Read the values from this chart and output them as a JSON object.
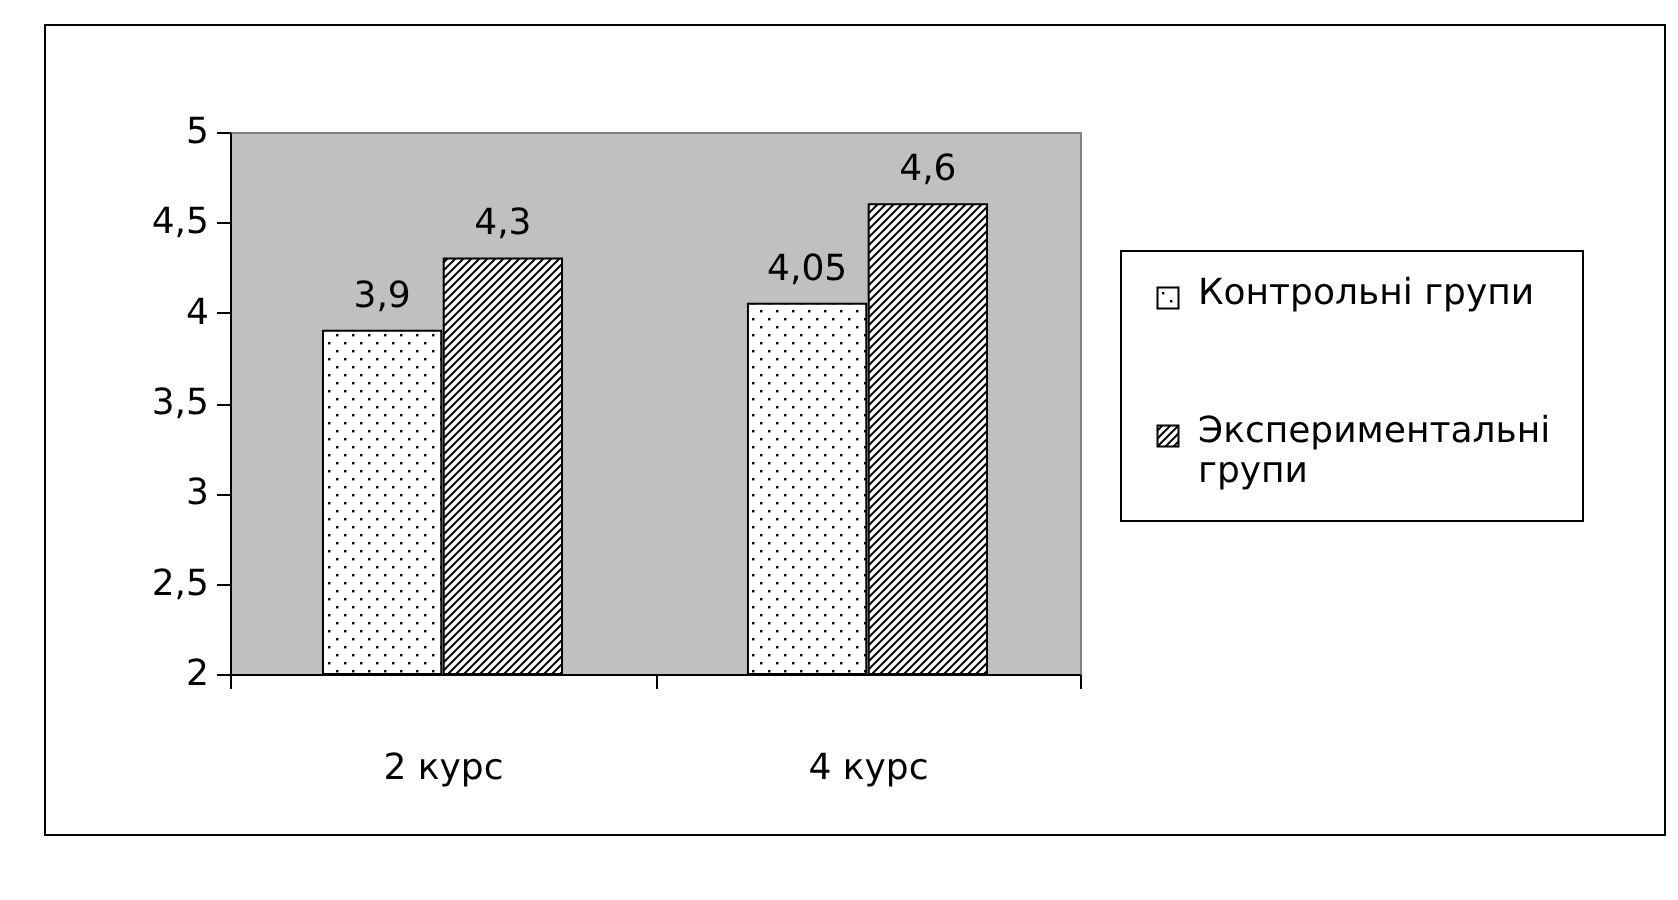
{
  "chart_data": {
    "type": "bar",
    "categories": [
      "2 курс",
      "4 курс"
    ],
    "series": [
      {
        "name": "Контрольні групи",
        "color": "#000000",
        "values": [
          3.9,
          4.05
        ],
        "value_labels": [
          "3,9",
          "4,05"
        ]
      },
      {
        "name": "Экспериментальні групи",
        "color": "#000000",
        "values": [
          4.3,
          4.6
        ],
        "value_labels": [
          "4,3",
          "4,6"
        ]
      }
    ],
    "ylim": [
      2,
      5
    ],
    "yticks": [
      2,
      {
        "value": 2.5,
        "label": "2,5"
      },
      3,
      {
        "value": 3.5,
        "label": "3,5"
      },
      4,
      {
        "value": 4.5,
        "label": "4,5"
      },
      5
    ],
    "legend": "right"
  }
}
